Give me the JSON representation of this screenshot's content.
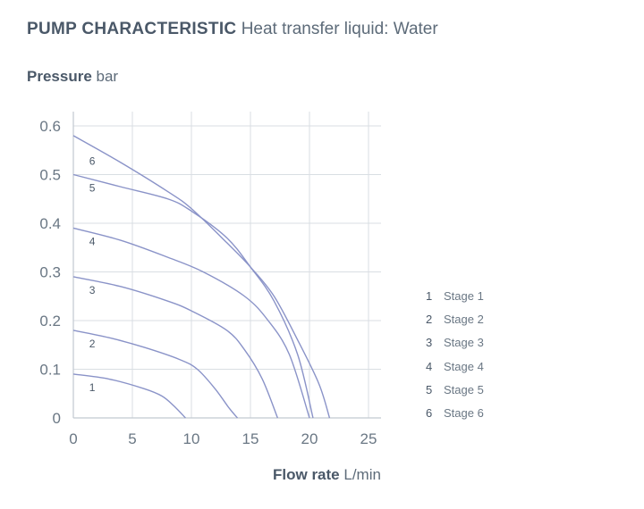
{
  "header": {
    "title_strong": "PUMP CHARACTERISTIC",
    "title_sub": "Heat transfer liquid: Water"
  },
  "axes": {
    "y_name": "Pressure",
    "y_unit": "bar",
    "x_name": "Flow rate",
    "x_unit": "L/min"
  },
  "colors": {
    "curve": "#8a93c8",
    "grid": "#d9dee3",
    "axis": "#c2c9d0"
  },
  "chart_data": {
    "type": "line",
    "xlim": [
      0,
      25
    ],
    "ylim": [
      0,
      0.6
    ],
    "x_ticks": [
      "0",
      "5",
      "10",
      "15",
      "20",
      "25"
    ],
    "y_ticks": [
      "0",
      "0.1",
      "0.2",
      "0.3",
      "0.4",
      "0.5",
      "0.6"
    ],
    "grid": true,
    "legend": "right",
    "series": [
      {
        "name": "Stage 1",
        "curve_label": "1",
        "label_at": [
          1.6,
          0.055
        ],
        "points": [
          [
            0,
            0.09
          ],
          [
            3,
            0.08
          ],
          [
            6,
            0.06
          ],
          [
            7.5,
            0.045
          ],
          [
            8.5,
            0.025
          ],
          [
            9.5,
            0.0
          ]
        ]
      },
      {
        "name": "Stage 2",
        "curve_label": "2",
        "label_at": [
          1.6,
          0.145
        ],
        "points": [
          [
            0,
            0.18
          ],
          [
            3,
            0.165
          ],
          [
            6,
            0.145
          ],
          [
            9,
            0.12
          ],
          [
            10.5,
            0.1
          ],
          [
            12,
            0.06
          ],
          [
            13.2,
            0.02
          ],
          [
            13.9,
            0.0
          ]
        ]
      },
      {
        "name": "Stage 3",
        "curve_label": "3",
        "label_at": [
          1.6,
          0.255
        ],
        "points": [
          [
            0,
            0.29
          ],
          [
            4,
            0.27
          ],
          [
            8,
            0.24
          ],
          [
            10,
            0.22
          ],
          [
            13,
            0.18
          ],
          [
            14.5,
            0.14
          ],
          [
            16,
            0.08
          ],
          [
            17.3,
            0.0
          ]
        ]
      },
      {
        "name": "Stage 4",
        "curve_label": "4",
        "label_at": [
          1.6,
          0.355
        ],
        "points": [
          [
            0,
            0.39
          ],
          [
            4,
            0.365
          ],
          [
            8,
            0.33
          ],
          [
            11,
            0.3
          ],
          [
            14.5,
            0.25
          ],
          [
            16.5,
            0.2
          ],
          [
            18.3,
            0.13
          ],
          [
            20,
            0.0
          ]
        ]
      },
      {
        "name": "Stage 5",
        "curve_label": "5",
        "label_at": [
          1.6,
          0.465
        ],
        "points": [
          [
            0,
            0.5
          ],
          [
            4,
            0.475
          ],
          [
            8,
            0.45
          ],
          [
            10,
            0.425
          ],
          [
            13,
            0.37
          ],
          [
            15,
            0.31
          ],
          [
            17,
            0.24
          ],
          [
            19,
            0.13
          ],
          [
            20.3,
            0.0
          ]
        ]
      },
      {
        "name": "Stage 6",
        "curve_label": "6",
        "label_at": [
          1.6,
          0.52
        ],
        "points": [
          [
            0,
            0.58
          ],
          [
            4,
            0.525
          ],
          [
            8,
            0.465
          ],
          [
            10,
            0.43
          ],
          [
            13,
            0.36
          ],
          [
            15,
            0.31
          ],
          [
            17,
            0.25
          ],
          [
            19,
            0.16
          ],
          [
            20.8,
            0.07
          ],
          [
            21.7,
            0.0
          ]
        ]
      }
    ]
  }
}
